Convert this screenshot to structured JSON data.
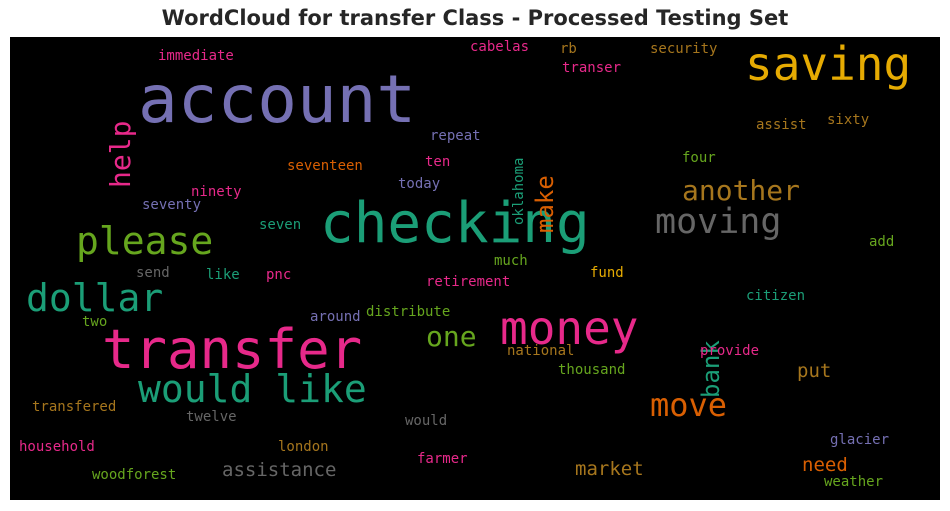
{
  "title": "WordCloud for transfer Class - Processed Testing Set",
  "chart_data": {
    "type": "wordcloud",
    "background": "#000000",
    "words": [
      {
        "text": "account",
        "color": "#7570b3"
      },
      {
        "text": "checking",
        "color": "#1b9e77"
      },
      {
        "text": "transfer",
        "color": "#e7298a"
      },
      {
        "text": "saving",
        "color": "#e6ab02"
      },
      {
        "text": "money",
        "color": "#e7298a"
      },
      {
        "text": "would like",
        "color": "#1b9e77"
      },
      {
        "text": "please",
        "color": "#66a61e"
      },
      {
        "text": "dollar",
        "color": "#1b9e77"
      },
      {
        "text": "moving",
        "color": "#666666"
      },
      {
        "text": "another",
        "color": "#a6761d"
      },
      {
        "text": "move",
        "color": "#d95f02"
      },
      {
        "text": "help",
        "color": "#e7298a"
      },
      {
        "text": "one",
        "color": "#66a61e"
      },
      {
        "text": "make",
        "color": "#d95f02"
      },
      {
        "text": "bank",
        "color": "#1b9e77"
      },
      {
        "text": "assistance",
        "color": "#666666"
      },
      {
        "text": "market",
        "color": "#a6761d"
      },
      {
        "text": "need",
        "color": "#d95f02"
      },
      {
        "text": "put",
        "color": "#a6761d"
      },
      {
        "text": "immediate",
        "color": "#e7298a"
      },
      {
        "text": "cabelas",
        "color": "#e7298a"
      },
      {
        "text": "rb",
        "color": "#a6761d"
      },
      {
        "text": "security",
        "color": "#a6761d"
      },
      {
        "text": "transer",
        "color": "#e7298a"
      },
      {
        "text": "oklahoma",
        "color": "#1b9e77"
      },
      {
        "text": "repeat",
        "color": "#7570b3"
      },
      {
        "text": "assist",
        "color": "#a6761d"
      },
      {
        "text": "sixty",
        "color": "#a6761d"
      },
      {
        "text": "seventeen",
        "color": "#d95f02"
      },
      {
        "text": "ten",
        "color": "#e7298a"
      },
      {
        "text": "four",
        "color": "#66a61e"
      },
      {
        "text": "today",
        "color": "#7570b3"
      },
      {
        "text": "ninety",
        "color": "#e7298a"
      },
      {
        "text": "seventy",
        "color": "#7570b3"
      },
      {
        "text": "seven",
        "color": "#1b9e77"
      },
      {
        "text": "add",
        "color": "#66a61e"
      },
      {
        "text": "much",
        "color": "#66a61e"
      },
      {
        "text": "send",
        "color": "#666666"
      },
      {
        "text": "like",
        "color": "#1b9e77"
      },
      {
        "text": "pnc",
        "color": "#e7298a"
      },
      {
        "text": "retirement",
        "color": "#e7298a"
      },
      {
        "text": "fund",
        "color": "#e6ab02"
      },
      {
        "text": "citizen",
        "color": "#1b9e77"
      },
      {
        "text": "two",
        "color": "#66a61e"
      },
      {
        "text": "around",
        "color": "#7570b3"
      },
      {
        "text": "distribute",
        "color": "#66a61e"
      },
      {
        "text": "national",
        "color": "#a6761d"
      },
      {
        "text": "provide",
        "color": "#e7298a"
      },
      {
        "text": "thousand",
        "color": "#66a61e"
      },
      {
        "text": "transfered",
        "color": "#a6761d"
      },
      {
        "text": "twelve",
        "color": "#666666"
      },
      {
        "text": "would",
        "color": "#666666"
      },
      {
        "text": "household",
        "color": "#e7298a"
      },
      {
        "text": "london",
        "color": "#a6761d"
      },
      {
        "text": "glacier",
        "color": "#7570b3"
      },
      {
        "text": "farmer",
        "color": "#e7298a"
      },
      {
        "text": "woodforest",
        "color": "#66a61e"
      },
      {
        "text": "weather",
        "color": "#66a61e"
      }
    ]
  }
}
